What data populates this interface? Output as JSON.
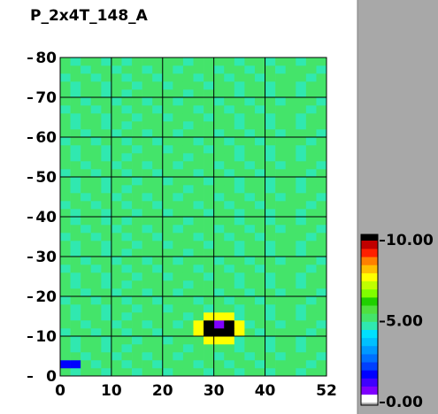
{
  "chart_data": {
    "type": "heatmap",
    "title": "P_2x4T_148_A",
    "xlim": [
      0,
      52
    ],
    "ylim": [
      0,
      80
    ],
    "xticks": [
      0,
      10,
      20,
      30,
      40,
      52
    ],
    "yticks": [
      0,
      10,
      20,
      30,
      40,
      50,
      60,
      70,
      80
    ],
    "grid": true,
    "clim": [
      0,
      10
    ],
    "cticks": [
      {
        "value": 0,
        "label": "0.00"
      },
      {
        "value": 5,
        "label": "5.00"
      },
      {
        "value": 10,
        "label": "10.00"
      }
    ],
    "colorscale": [
      "#ffffff",
      "#7f00ff",
      "#3f00ff",
      "#0000ff",
      "#0040ff",
      "#0070ff",
      "#0099ff",
      "#00c0ff",
      "#00e0ff",
      "#30e8b0",
      "#44e46a",
      "#50e040",
      "#20d000",
      "#80ff00",
      "#c0ff00",
      "#ffff00",
      "#ffc000",
      "#ff8000",
      "#ff2000",
      "#c00000"
    ],
    "over_color": "#000000",
    "z": [
      [
        5.1,
        4.9,
        5.3,
        5.0,
        4.8,
        5.2,
        5.4,
        4.9,
        5.0,
        5.1,
        4.7,
        5.2,
        5.0,
        5.3,
        4.9,
        5.1,
        5.0,
        4.8,
        5.2,
        5.1,
        4.9,
        5.3,
        5.0,
        4.8,
        5.1,
        5.2
      ],
      [
        1.6,
        1.6,
        5.0,
        4.8,
        5.3,
        5.1,
        4.9,
        5.0,
        5.4,
        4.8,
        5.1,
        5.0,
        5.2,
        4.9,
        5.1,
        5.3,
        4.8,
        5.0,
        5.1,
        4.9,
        5.2,
        5.0,
        5.4,
        5.1,
        4.9,
        5.0
      ],
      [
        5.0,
        5.3,
        4.8,
        5.1,
        5.0,
        4.9,
        5.2,
        5.1,
        4.8,
        5.3,
        5.0,
        4.9,
        5.1,
        5.2,
        5.0,
        4.8,
        5.3,
        5.1,
        4.9,
        5.0,
        5.2,
        4.8,
        5.1,
        5.3,
        5.0,
        4.9
      ],
      [
        5.2,
        4.8,
        5.1,
        5.3,
        4.9,
        5.0,
        4.8,
        5.2,
        5.1,
        5.0,
        5.4,
        5.1,
        4.9,
        5.0,
        5.3,
        5.0,
        5.1,
        4.9,
        5.0,
        5.3,
        4.8,
        5.1,
        5.0,
        4.9,
        5.2,
        5.1
      ],
      [
        5.1,
        4.9,
        5.3,
        5.0,
        4.8,
        5.2,
        5.4,
        4.9,
        5.0,
        5.1,
        4.7,
        5.2,
        5.0,
        5.3,
        7.5,
        7.5,
        7.5,
        4.8,
        5.2,
        5.1,
        4.9,
        5.3,
        5.0,
        4.8,
        5.1,
        5.2
      ],
      [
        4.9,
        5.2,
        5.0,
        4.8,
        5.3,
        5.1,
        4.9,
        5.0,
        5.4,
        4.8,
        5.1,
        5.0,
        5.2,
        7.5,
        10.5,
        10.5,
        10.5,
        7.5,
        5.1,
        4.9,
        5.2,
        5.0,
        5.4,
        5.1,
        4.9,
        5.0
      ],
      [
        5.0,
        5.3,
        4.8,
        5.1,
        5.0,
        4.9,
        5.2,
        5.1,
        4.8,
        5.3,
        5.0,
        4.9,
        5.1,
        7.5,
        10.5,
        0.7,
        10.5,
        7.5,
        4.9,
        5.0,
        5.2,
        4.8,
        5.1,
        5.3,
        5.0,
        4.9
      ],
      [
        5.2,
        4.8,
        5.1,
        5.3,
        4.9,
        5.0,
        4.8,
        5.2,
        5.1,
        5.0,
        5.4,
        5.1,
        4.9,
        5.0,
        7.5,
        7.5,
        7.5,
        4.9,
        5.0,
        5.3,
        4.8,
        5.1,
        5.0,
        4.9,
        5.2,
        5.1
      ],
      [
        5.1,
        4.9,
        5.3,
        5.0,
        4.8,
        5.2,
        5.4,
        4.9,
        5.0,
        5.1,
        4.7,
        5.2,
        5.0,
        5.3,
        4.9,
        5.1,
        5.0,
        4.8,
        5.2,
        5.1,
        4.9,
        5.3,
        5.0,
        4.8,
        5.1,
        5.2
      ],
      [
        4.9,
        5.2,
        5.0,
        4.8,
        5.3,
        5.1,
        4.9,
        5.0,
        5.4,
        4.8,
        5.1,
        5.0,
        5.2,
        4.9,
        5.1,
        5.3,
        4.8,
        5.0,
        5.1,
        4.9,
        5.2,
        5.0,
        5.4,
        5.1,
        4.9,
        5.0
      ],
      [
        5.0,
        5.3,
        4.8,
        5.1,
        5.0,
        4.9,
        5.2,
        5.1,
        4.8,
        5.3,
        5.0,
        4.9,
        5.1,
        5.2,
        5.0,
        4.8,
        5.3,
        5.1,
        4.9,
        5.0,
        5.2,
        4.8,
        5.1,
        5.3,
        5.0,
        4.9
      ],
      [
        5.2,
        4.8,
        5.1,
        5.3,
        4.9,
        5.0,
        4.8,
        5.2,
        5.1,
        5.0,
        5.4,
        5.1,
        4.9,
        5.0,
        5.3,
        5.0,
        5.1,
        4.9,
        5.0,
        5.3,
        4.8,
        5.1,
        5.0,
        4.9,
        5.2,
        5.1
      ],
      [
        5.1,
        4.9,
        5.3,
        5.0,
        4.8,
        5.2,
        5.4,
        4.9,
        5.0,
        5.1,
        4.7,
        5.2,
        5.0,
        5.3,
        4.9,
        5.1,
        5.0,
        4.8,
        5.2,
        5.1,
        4.9,
        5.3,
        5.0,
        4.8,
        5.1,
        5.2
      ],
      [
        4.9,
        5.2,
        5.0,
        4.8,
        5.3,
        5.1,
        4.9,
        5.0,
        5.4,
        4.8,
        5.1,
        5.0,
        5.2,
        4.9,
        5.1,
        5.3,
        4.8,
        5.0,
        5.1,
        4.9,
        5.2,
        5.0,
        5.4,
        5.1,
        4.9,
        5.0
      ],
      [
        5.0,
        5.3,
        4.8,
        5.1,
        5.0,
        4.9,
        5.2,
        5.1,
        4.8,
        5.3,
        5.0,
        4.9,
        5.1,
        5.2,
        5.0,
        4.8,
        5.3,
        5.1,
        4.9,
        5.0,
        5.2,
        4.8,
        5.1,
        5.3,
        5.0,
        4.9
      ],
      [
        5.2,
        4.8,
        5.1,
        5.3,
        4.9,
        5.0,
        4.8,
        5.2,
        5.1,
        5.0,
        5.4,
        5.1,
        4.9,
        5.0,
        5.3,
        5.0,
        5.1,
        4.9,
        5.0,
        5.3,
        4.8,
        5.1,
        5.0,
        4.9,
        5.2,
        5.1
      ],
      [
        5.1,
        4.9,
        5.3,
        5.0,
        4.8,
        5.2,
        5.4,
        4.9,
        5.0,
        5.1,
        4.7,
        5.2,
        5.0,
        5.3,
        4.9,
        5.1,
        5.0,
        4.8,
        5.2,
        5.1,
        4.9,
        5.3,
        5.0,
        4.8,
        5.1,
        5.2
      ],
      [
        4.9,
        5.2,
        5.0,
        4.8,
        5.3,
        5.1,
        4.9,
        5.0,
        5.4,
        4.8,
        5.1,
        5.0,
        5.2,
        4.9,
        5.1,
        5.3,
        4.8,
        5.0,
        5.1,
        4.9,
        5.2,
        5.0,
        5.4,
        5.1,
        4.9,
        5.0
      ],
      [
        5.0,
        5.3,
        4.8,
        5.1,
        5.0,
        4.9,
        5.2,
        5.1,
        4.8,
        5.3,
        5.0,
        4.9,
        5.1,
        5.2,
        5.0,
        4.8,
        5.3,
        5.1,
        4.9,
        5.0,
        5.2,
        4.8,
        5.1,
        5.3,
        5.0,
        4.9
      ],
      [
        5.2,
        4.8,
        5.1,
        5.3,
        4.9,
        5.0,
        4.8,
        5.2,
        5.1,
        5.0,
        5.4,
        5.1,
        4.9,
        5.0,
        5.3,
        5.0,
        5.1,
        4.9,
        5.0,
        5.3,
        4.8,
        5.1,
        5.0,
        4.9,
        5.2,
        5.1
      ],
      [
        5.1,
        4.9,
        5.3,
        5.0,
        4.8,
        5.2,
        5.4,
        4.9,
        5.0,
        5.1,
        4.7,
        5.2,
        5.0,
        5.3,
        4.9,
        5.1,
        5.0,
        4.8,
        5.2,
        5.1,
        4.9,
        5.3,
        5.0,
        4.8,
        5.1,
        5.2
      ],
      [
        4.9,
        5.2,
        5.0,
        4.8,
        5.3,
        5.1,
        4.9,
        5.0,
        5.4,
        4.8,
        5.1,
        5.0,
        5.2,
        4.9,
        5.1,
        5.3,
        4.8,
        5.0,
        5.1,
        4.9,
        5.2,
        5.0,
        5.4,
        5.1,
        4.9,
        5.0
      ],
      [
        5.0,
        5.3,
        4.8,
        5.1,
        5.0,
        4.9,
        5.2,
        5.1,
        4.8,
        5.3,
        5.0,
        4.9,
        5.1,
        5.2,
        5.0,
        4.8,
        5.3,
        5.1,
        4.9,
        5.0,
        5.2,
        4.8,
        5.1,
        5.3,
        5.0,
        4.9
      ],
      [
        5.2,
        4.8,
        5.1,
        5.3,
        4.9,
        5.0,
        4.8,
        5.2,
        5.1,
        5.0,
        5.4,
        5.1,
        4.9,
        5.0,
        5.3,
        5.0,
        5.1,
        4.9,
        5.0,
        5.3,
        4.8,
        5.1,
        5.0,
        4.9,
        5.2,
        5.1
      ],
      [
        5.1,
        4.9,
        5.3,
        5.0,
        4.8,
        5.2,
        5.4,
        4.9,
        5.0,
        5.1,
        4.7,
        5.2,
        5.0,
        5.3,
        4.9,
        5.1,
        5.0,
        4.8,
        5.2,
        5.1,
        4.9,
        5.3,
        5.0,
        4.8,
        5.1,
        5.2
      ],
      [
        4.9,
        5.2,
        5.0,
        4.8,
        5.3,
        5.1,
        4.9,
        5.0,
        5.4,
        4.8,
        5.1,
        5.0,
        5.2,
        4.9,
        5.1,
        5.3,
        4.8,
        5.0,
        5.1,
        4.9,
        5.2,
        5.0,
        5.4,
        5.1,
        4.9,
        5.0
      ],
      [
        5.0,
        5.3,
        4.8,
        5.1,
        5.0,
        4.9,
        5.2,
        5.1,
        4.8,
        5.3,
        5.0,
        4.9,
        5.1,
        5.2,
        5.0,
        4.8,
        5.3,
        5.1,
        4.9,
        5.0,
        5.2,
        4.8,
        5.1,
        5.3,
        5.0,
        4.9
      ],
      [
        5.2,
        4.8,
        5.1,
        5.3,
        4.9,
        5.0,
        4.8,
        5.2,
        5.1,
        5.0,
        5.4,
        5.1,
        4.9,
        5.0,
        5.3,
        5.0,
        5.1,
        4.9,
        5.0,
        5.3,
        4.8,
        5.1,
        5.0,
        4.9,
        5.2,
        5.1
      ],
      [
        5.1,
        4.9,
        5.3,
        5.0,
        4.8,
        5.2,
        5.4,
        4.9,
        5.0,
        5.1,
        4.7,
        5.2,
        5.0,
        5.3,
        4.9,
        5.1,
        5.0,
        4.8,
        5.2,
        5.1,
        4.9,
        5.3,
        5.0,
        4.8,
        5.1,
        5.2
      ],
      [
        4.9,
        5.2,
        5.0,
        4.8,
        5.3,
        5.1,
        4.9,
        5.0,
        5.4,
        4.8,
        5.1,
        5.0,
        5.2,
        4.9,
        5.1,
        5.3,
        4.8,
        5.0,
        5.1,
        4.9,
        5.2,
        5.0,
        5.4,
        5.1,
        4.9,
        5.0
      ],
      [
        5.0,
        5.3,
        4.8,
        5.1,
        5.0,
        4.9,
        5.2,
        5.1,
        4.8,
        5.3,
        5.0,
        4.9,
        5.1,
        5.2,
        5.0,
        4.8,
        5.3,
        5.1,
        4.9,
        5.0,
        5.2,
        4.8,
        5.1,
        5.3,
        5.0,
        4.9
      ],
      [
        5.2,
        4.8,
        5.1,
        5.3,
        4.9,
        5.0,
        4.8,
        5.2,
        5.1,
        5.0,
        5.4,
        5.1,
        4.9,
        5.0,
        5.3,
        5.0,
        5.1,
        4.9,
        5.0,
        5.3,
        4.8,
        5.1,
        5.0,
        4.9,
        5.2,
        5.1
      ],
      [
        5.1,
        4.9,
        5.3,
        5.0,
        4.8,
        5.2,
        5.4,
        4.9,
        5.0,
        5.1,
        4.7,
        5.2,
        5.0,
        5.3,
        4.9,
        5.1,
        5.0,
        4.8,
        5.2,
        5.1,
        4.9,
        5.3,
        5.0,
        4.8,
        5.1,
        5.2
      ],
      [
        4.9,
        5.2,
        5.0,
        4.8,
        5.3,
        5.1,
        4.9,
        5.0,
        5.4,
        4.8,
        5.1,
        5.0,
        5.2,
        4.9,
        5.1,
        5.3,
        4.8,
        5.0,
        5.1,
        4.9,
        5.2,
        5.0,
        5.4,
        5.1,
        4.9,
        5.0
      ],
      [
        5.0,
        5.3,
        4.8,
        5.1,
        5.0,
        4.9,
        5.2,
        5.1,
        4.8,
        5.3,
        5.0,
        4.9,
        5.1,
        5.2,
        5.0,
        4.8,
        5.3,
        5.1,
        4.9,
        5.0,
        5.2,
        4.8,
        5.1,
        5.3,
        5.0,
        4.9
      ],
      [
        5.2,
        4.8,
        5.1,
        5.3,
        4.9,
        5.0,
        4.8,
        5.2,
        5.1,
        5.0,
        5.4,
        5.1,
        4.9,
        5.0,
        5.3,
        5.0,
        5.1,
        4.9,
        5.0,
        5.3,
        4.8,
        5.1,
        5.0,
        4.9,
        5.2,
        5.1
      ],
      [
        5.1,
        4.9,
        5.3,
        5.0,
        4.8,
        5.2,
        5.4,
        4.9,
        5.0,
        5.1,
        4.7,
        5.2,
        5.0,
        5.3,
        4.9,
        5.1,
        5.0,
        4.8,
        5.2,
        5.1,
        4.9,
        5.3,
        5.0,
        4.8,
        5.1,
        5.2
      ],
      [
        4.9,
        5.2,
        5.0,
        4.8,
        5.3,
        5.1,
        4.9,
        5.0,
        5.4,
        4.8,
        5.1,
        5.0,
        5.2,
        4.9,
        5.1,
        5.3,
        4.8,
        5.0,
        5.1,
        4.9,
        5.2,
        5.0,
        5.4,
        5.1,
        4.9,
        5.0
      ],
      [
        5.0,
        5.3,
        4.8,
        5.1,
        5.0,
        4.9,
        5.2,
        5.1,
        4.8,
        5.3,
        5.0,
        4.9,
        5.1,
        5.2,
        5.0,
        4.8,
        5.3,
        5.1,
        4.9,
        5.0,
        5.2,
        4.8,
        5.1,
        5.3,
        5.0,
        4.9
      ],
      [
        5.2,
        4.8,
        5.1,
        5.3,
        4.9,
        5.0,
        4.8,
        5.2,
        5.1,
        5.0,
        5.4,
        5.1,
        4.9,
        5.0,
        5.3,
        5.0,
        5.1,
        4.9,
        5.0,
        5.3,
        4.8,
        5.1,
        5.0,
        4.9,
        5.2,
        5.1
      ]
    ]
  }
}
